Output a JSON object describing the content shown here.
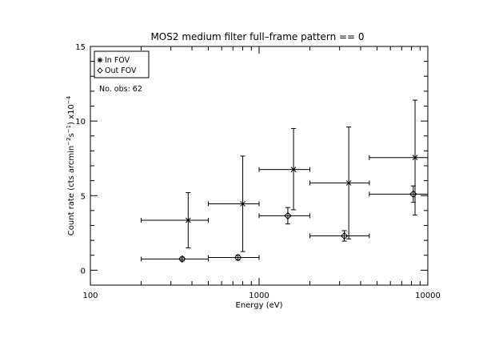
{
  "chart_data": {
    "type": "scatter",
    "title": "MOS2 medium filter full–frame pattern == 0",
    "xlabel": "Energy (eV)",
    "ylabel_parts": {
      "a": "Count rate (cts arcmin",
      "b": "−2",
      "c": "s",
      "d": "−1",
      "e": ") x10",
      "f": "−4"
    },
    "x_scale": "log",
    "xlim": [
      100,
      10000
    ],
    "ylim": [
      -1,
      15
    ],
    "x_ticks": [
      {
        "value": 100,
        "label": "100"
      },
      {
        "value": 1000,
        "label": "1000"
      },
      {
        "value": 10000,
        "label": "10000"
      }
    ],
    "y_ticks": [
      {
        "value": 0,
        "label": "0"
      },
      {
        "value": 5,
        "label": "5"
      },
      {
        "value": 10,
        "label": "10"
      },
      {
        "value": 15,
        "label": "15"
      }
    ],
    "legend_position": "top-left",
    "annotation": "No. obs: 62",
    "series": [
      {
        "name": "In FOV",
        "marker": "asterisk",
        "points": [
          {
            "x": 380,
            "xlo": 200,
            "xhi": 500,
            "y": 3.35,
            "ylo": 1.5,
            "yhi": 5.2
          },
          {
            "x": 800,
            "xlo": 500,
            "xhi": 1000,
            "y": 4.45,
            "ylo": 1.25,
            "yhi": 7.65
          },
          {
            "x": 1600,
            "xlo": 1000,
            "xhi": 2000,
            "y": 6.75,
            "ylo": 4.05,
            "yhi": 9.5
          },
          {
            "x": 3400,
            "xlo": 2000,
            "xhi": 4500,
            "y": 5.85,
            "ylo": 2.1,
            "yhi": 9.6
          },
          {
            "x": 8400,
            "xlo": 4500,
            "xhi": 10000,
            "y": 7.55,
            "ylo": 3.7,
            "yhi": 11.4
          }
        ]
      },
      {
        "name": "Out FOV",
        "marker": "diamond",
        "points": [
          {
            "x": 350,
            "xlo": 200,
            "xhi": 500,
            "y": 0.75,
            "ylo": 0.62,
            "yhi": 0.88
          },
          {
            "x": 750,
            "xlo": 500,
            "xhi": 1000,
            "y": 0.85,
            "ylo": 0.68,
            "yhi": 1.02
          },
          {
            "x": 1480,
            "xlo": 1000,
            "xhi": 2000,
            "y": 3.65,
            "ylo": 3.1,
            "yhi": 4.2
          },
          {
            "x": 3200,
            "xlo": 2000,
            "xhi": 4500,
            "y": 2.3,
            "ylo": 1.95,
            "yhi": 2.65
          },
          {
            "x": 8200,
            "xlo": 4500,
            "xhi": 10000,
            "y": 5.1,
            "ylo": 4.55,
            "yhi": 5.65
          }
        ]
      }
    ]
  }
}
